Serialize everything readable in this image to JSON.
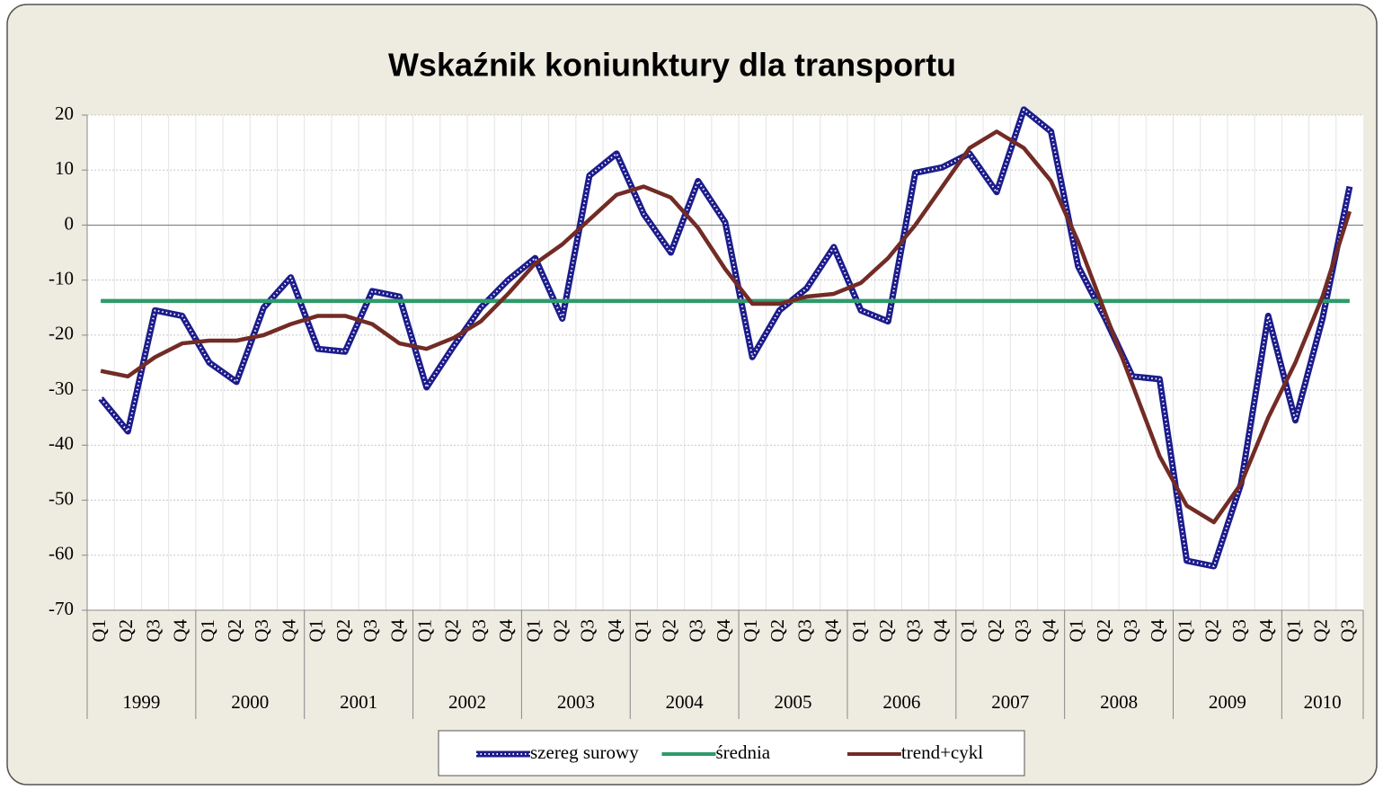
{
  "chart_data": {
    "type": "line",
    "title": "Wskaźnik koniunktury dla transportu",
    "categories": [
      "Q1",
      "Q2",
      "Q3",
      "Q4",
      "Q1",
      "Q2",
      "Q3",
      "Q4",
      "Q1",
      "Q2",
      "Q3",
      "Q4",
      "Q1",
      "Q2",
      "Q3",
      "Q4",
      "Q1",
      "Q2",
      "Q3",
      "Q4",
      "Q1",
      "Q2",
      "Q3",
      "Q4",
      "Q1",
      "Q2",
      "Q3",
      "Q4",
      "Q1",
      "Q2",
      "Q3",
      "Q4",
      "Q1",
      "Q2",
      "Q3",
      "Q4",
      "Q1",
      "Q2",
      "Q3",
      "Q4",
      "Q1",
      "Q2",
      "Q3",
      "Q4",
      "Q1",
      "Q2",
      "Q3"
    ],
    "year_groups": [
      "1999",
      "2000",
      "2001",
      "2002",
      "2003",
      "2004",
      "2005",
      "2006",
      "2007",
      "2008",
      "2009",
      "2010"
    ],
    "series": [
      {
        "name": "szereg surowy",
        "color": "#1c1c8c",
        "style": "dotted",
        "values": [
          -31.5,
          -37.5,
          -15.5,
          -16.5,
          -25,
          -28.5,
          -15,
          -9.5,
          -22.5,
          -23,
          -12,
          -13,
          -29.5,
          -22,
          -15,
          -10,
          -6,
          -17,
          9,
          13,
          2,
          -5,
          8,
          0.5,
          -24,
          -15.5,
          -11.5,
          -4,
          -15.5,
          -17.5,
          9.5,
          10.5,
          13,
          6,
          21,
          17,
          -7.5,
          -17,
          -27.5,
          -28,
          -61,
          -62,
          -47,
          -16.5,
          -35.5,
          -17,
          7
        ]
      },
      {
        "name": "średnia",
        "color": "#2e9a6a",
        "style": "solid",
        "values": [
          -13.8,
          -13.8,
          -13.8,
          -13.8,
          -13.8,
          -13.8,
          -13.8,
          -13.8,
          -13.8,
          -13.8,
          -13.8,
          -13.8,
          -13.8,
          -13.8,
          -13.8,
          -13.8,
          -13.8,
          -13.8,
          -13.8,
          -13.8,
          -13.8,
          -13.8,
          -13.8,
          -13.8,
          -13.8,
          -13.8,
          -13.8,
          -13.8,
          -13.8,
          -13.8,
          -13.8,
          -13.8,
          -13.8,
          -13.8,
          -13.8,
          -13.8,
          -13.8,
          -13.8,
          -13.8,
          -13.8,
          -13.8,
          -13.8,
          -13.8,
          -13.8,
          -13.8,
          -13.8,
          -13.8
        ]
      },
      {
        "name": "trend+cykl",
        "color": "#722b25",
        "style": "solid",
        "values": [
          -26.5,
          -27.5,
          -24,
          -21.5,
          -21,
          -21,
          -20,
          -18,
          -16.5,
          -16.5,
          -18,
          -21.5,
          -22.5,
          -20.5,
          -17.5,
          -12.5,
          -7,
          -3.5,
          1,
          5.5,
          7,
          5,
          -0.5,
          -8,
          -14.3,
          -14.3,
          -13,
          -12.5,
          -10.5,
          -6,
          0,
          7,
          14,
          17,
          14,
          8,
          -3,
          -16,
          -29,
          -42,
          -51,
          -54,
          -47,
          -35,
          -25,
          -13,
          2.5
        ]
      }
    ],
    "ylim": [
      -70,
      20
    ],
    "yticks": [
      -70,
      -60,
      -50,
      -40,
      -30,
      -20,
      -10,
      0,
      10,
      20
    ],
    "grid": true,
    "legend": "bottom"
  }
}
